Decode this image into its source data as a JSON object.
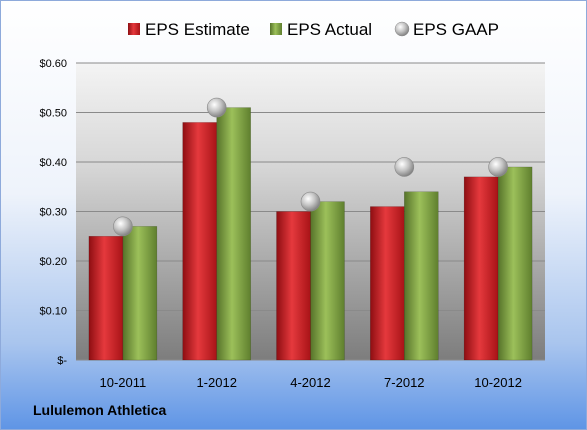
{
  "company": "Lululemon Athletica",
  "chart_data": {
    "type": "bar",
    "categories": [
      "10-2011",
      "1-2012",
      "4-2012",
      "7-2012",
      "10-2012"
    ],
    "series": [
      {
        "name": "EPS Estimate",
        "kind": "bar",
        "color": "#c0161b",
        "values": [
          0.25,
          0.48,
          0.3,
          0.31,
          0.37
        ]
      },
      {
        "name": "EPS Actual",
        "kind": "bar",
        "color": "#77993a",
        "values": [
          0.27,
          0.51,
          0.32,
          0.34,
          0.39
        ]
      },
      {
        "name": "EPS GAAP",
        "kind": "marker",
        "color": "#b9b9b9",
        "values": [
          0.27,
          0.51,
          0.32,
          0.39,
          0.39
        ]
      }
    ],
    "y_ticks": [
      0,
      0.1,
      0.2,
      0.3,
      0.4,
      0.5,
      0.6
    ],
    "y_tick_labels": [
      "$-",
      "$0.10",
      "$0.20",
      "$0.30",
      "$0.40",
      "$0.50",
      "$0.60"
    ],
    "ylim": [
      0,
      0.6
    ],
    "grid": true,
    "legend_position": "top"
  }
}
